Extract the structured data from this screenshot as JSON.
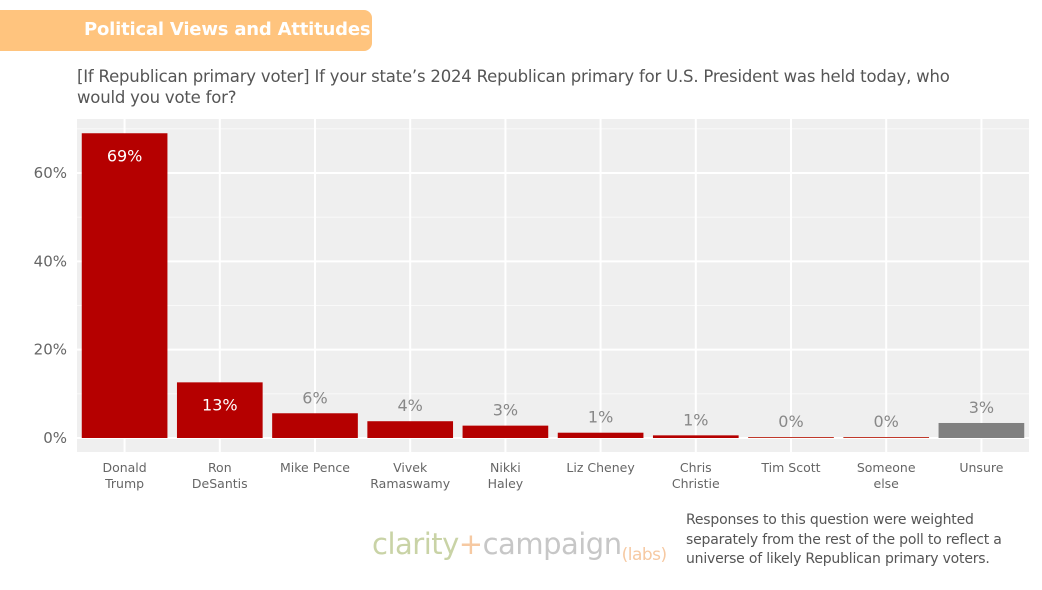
{
  "header": {
    "section_title": "Political Views and Attitudes"
  },
  "question": "[If Republican primary voter] If your state’s 2024 Republican primary for U.S. President was held today, who would you vote for?",
  "footer": {
    "logo": {
      "part1": "clarity",
      "plus": "+",
      "part2": "campaign",
      "part3": "(labs)"
    },
    "note": "Responses to this question were weighted separately from the rest of the poll to reflect a universe of likely Republican primary voters."
  },
  "colors": {
    "candidate": "#B50000",
    "unsure": "#808080",
    "panel": "#EFEFEF",
    "grid": "#FFFFFF"
  },
  "chart_data": {
    "type": "bar",
    "title": "[If Republican primary voter] If your state’s 2024 Republican primary for U.S. President was held today, who would you vote for?",
    "xlabel": "",
    "ylabel": "",
    "categories": [
      [
        "Donald",
        "Trump"
      ],
      [
        "Ron",
        "DeSantis"
      ],
      [
        "Mike Pence"
      ],
      [
        "Vivek",
        "Ramaswamy"
      ],
      [
        "Nikki",
        "Haley"
      ],
      [
        "Liz Cheney"
      ],
      [
        "Chris",
        "Christie"
      ],
      [
        "Tim Scott"
      ],
      [
        "Someone",
        "else"
      ],
      [
        "Unsure"
      ]
    ],
    "values": [
      69,
      12.6,
      5.6,
      3.8,
      2.8,
      1.2,
      0.6,
      0.2,
      0.2,
      3.4
    ],
    "labels": [
      "69%",
      "13%",
      "6%",
      "4%",
      "3%",
      "1%",
      "1%",
      "0%",
      "0%",
      "3%"
    ],
    "bar_colors": [
      "#B50000",
      "#B50000",
      "#B50000",
      "#B50000",
      "#B50000",
      "#B50000",
      "#B50000",
      "#C0392B",
      "#C0392B",
      "#808080"
    ],
    "label_inside": [
      true,
      true,
      false,
      false,
      false,
      false,
      false,
      false,
      false,
      false
    ],
    "yticks": [
      0,
      20,
      40,
      60
    ],
    "ytick_labels": [
      "0%",
      "20%",
      "40%",
      "60%"
    ],
    "ylim": [
      -3.2,
      72.2
    ],
    "grid": true,
    "legend": "none"
  }
}
